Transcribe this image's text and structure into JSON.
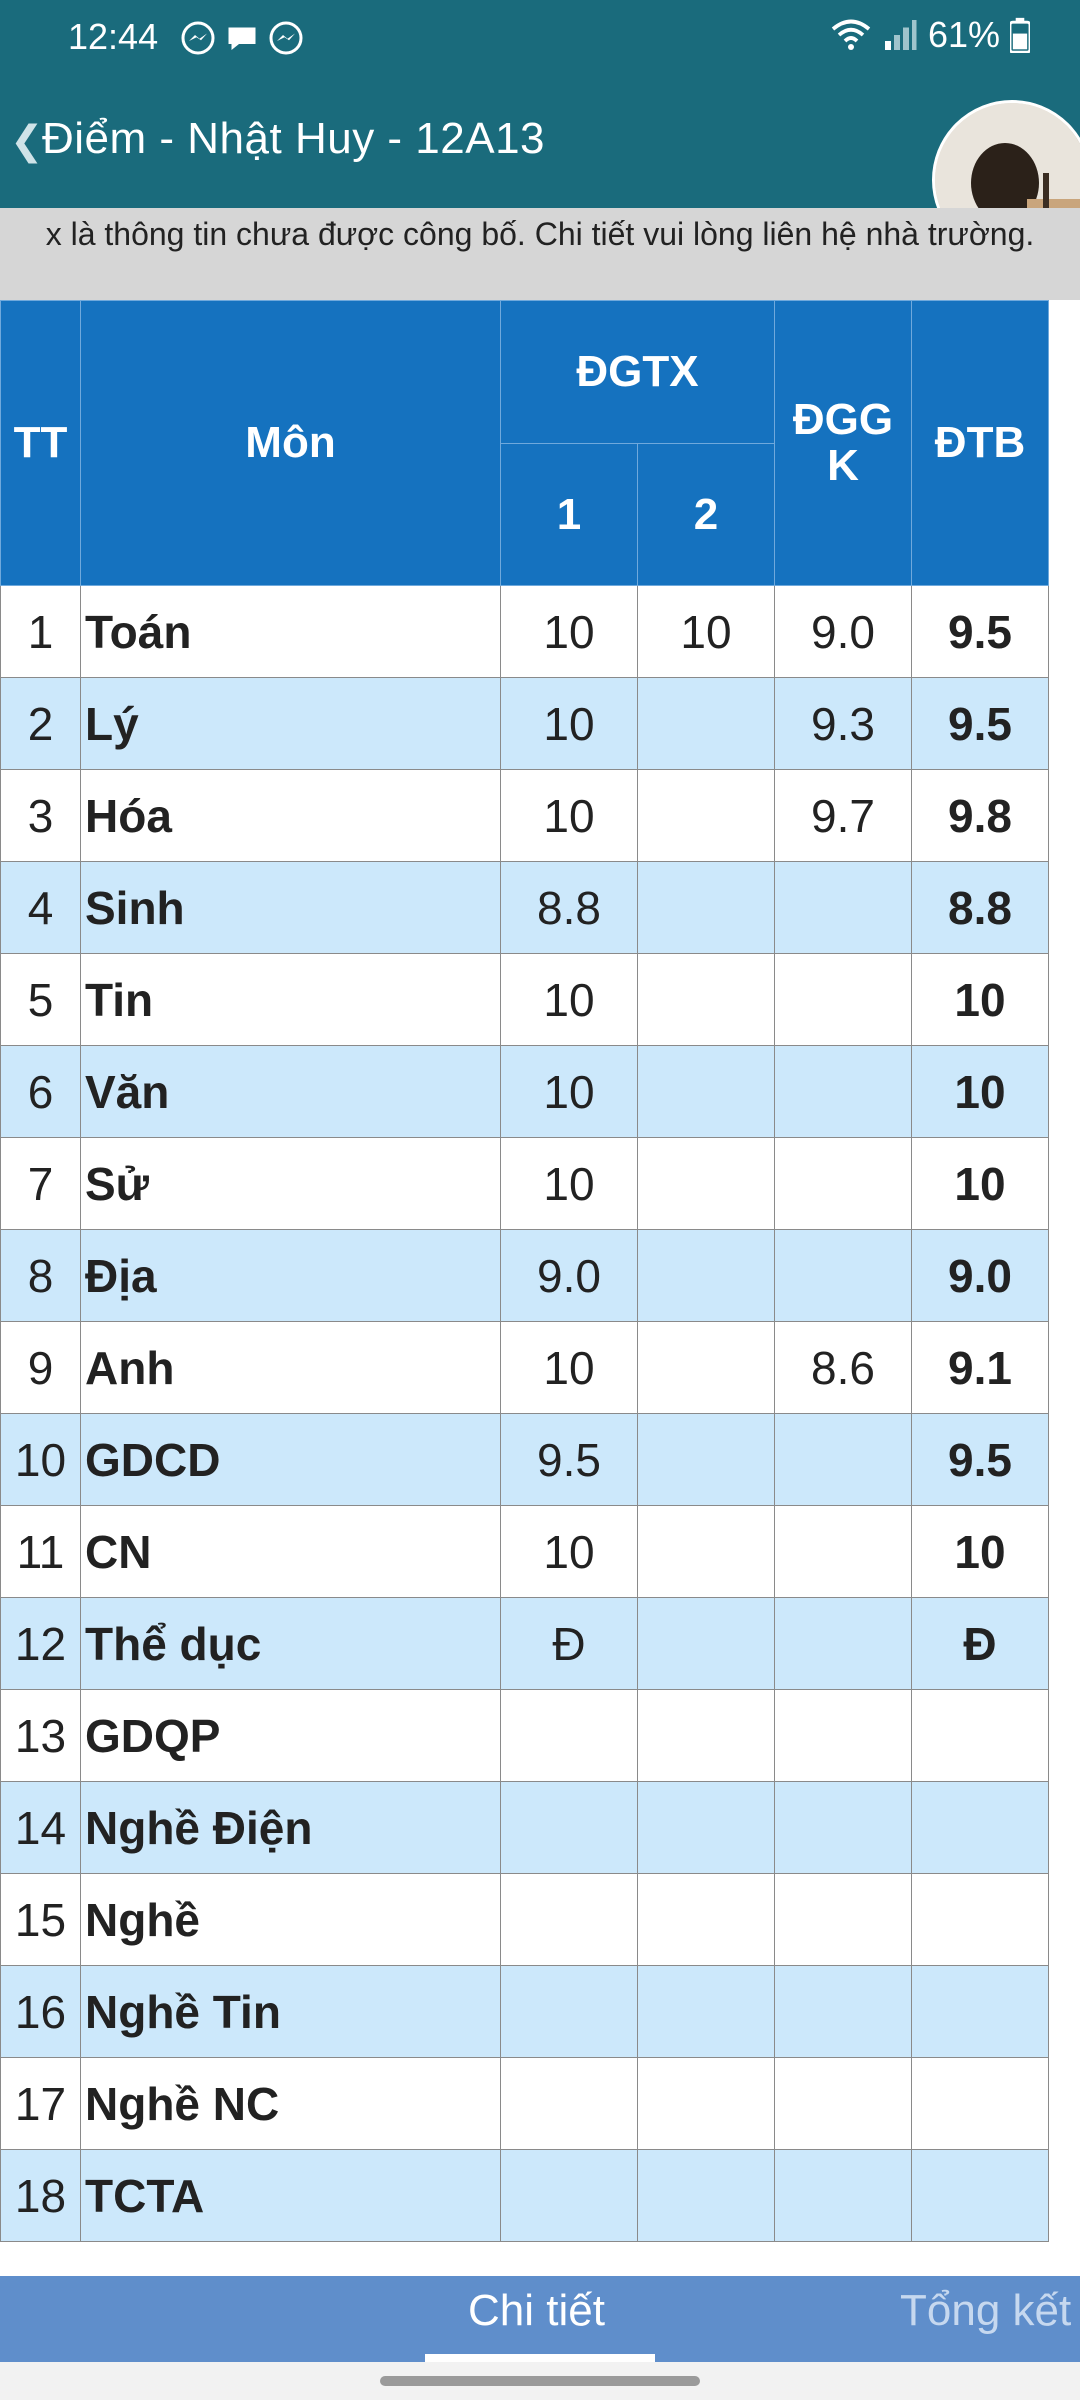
{
  "status": {
    "time": "12:44",
    "battery": "61%",
    "icons": [
      "messenger-icon",
      "chat-bubble-icon",
      "messenger-icon",
      "wifi-icon",
      "signal-icon",
      "battery-icon"
    ]
  },
  "header": {
    "title": "Điểm - Nhật Huy - 12A13"
  },
  "notice": "x là thông tin chưa được công bố. Chi tiết vui lòng liên hệ nhà trường.",
  "table": {
    "headers": {
      "tt": "TT",
      "mon": "Môn",
      "dgtx": "ĐGTX",
      "dgtx1": "1",
      "dgtx2": "2",
      "dggk": "ĐGG K",
      "dtb": "ĐTB"
    },
    "rows": [
      {
        "tt": "1",
        "mon": "Toán",
        "d1": "10",
        "d2": "10",
        "gk": "9.0",
        "tb": "9.5"
      },
      {
        "tt": "2",
        "mon": "Lý",
        "d1": "10",
        "d2": "",
        "gk": "9.3",
        "tb": "9.5"
      },
      {
        "tt": "3",
        "mon": "Hóa",
        "d1": "10",
        "d2": "",
        "gk": "9.7",
        "tb": "9.8"
      },
      {
        "tt": "4",
        "mon": "Sinh",
        "d1": "8.8",
        "d2": "",
        "gk": "",
        "tb": "8.8"
      },
      {
        "tt": "5",
        "mon": "Tin",
        "d1": "10",
        "d2": "",
        "gk": "",
        "tb": "10"
      },
      {
        "tt": "6",
        "mon": "Văn",
        "d1": "10",
        "d2": "",
        "gk": "",
        "tb": "10"
      },
      {
        "tt": "7",
        "mon": "Sử",
        "d1": "10",
        "d2": "",
        "gk": "",
        "tb": "10"
      },
      {
        "tt": "8",
        "mon": "Địa",
        "d1": "9.0",
        "d2": "",
        "gk": "",
        "tb": "9.0"
      },
      {
        "tt": "9",
        "mon": "Anh",
        "d1": "10",
        "d2": "",
        "gk": "8.6",
        "tb": "9.1"
      },
      {
        "tt": "10",
        "mon": "GDCD",
        "d1": "9.5",
        "d2": "",
        "gk": "",
        "tb": "9.5"
      },
      {
        "tt": "11",
        "mon": "CN",
        "d1": "10",
        "d2": "",
        "gk": "",
        "tb": "10"
      },
      {
        "tt": "12",
        "mon": "Thể dục",
        "d1": "Đ",
        "d2": "",
        "gk": "",
        "tb": "Đ"
      },
      {
        "tt": "13",
        "mon": "GDQP",
        "d1": "",
        "d2": "",
        "gk": "",
        "tb": ""
      },
      {
        "tt": "14",
        "mon": "Nghề Điện",
        "d1": "",
        "d2": "",
        "gk": "",
        "tb": ""
      },
      {
        "tt": "15",
        "mon": "Nghề",
        "d1": "",
        "d2": "",
        "gk": "",
        "tb": ""
      },
      {
        "tt": "16",
        "mon": "Nghề Tin",
        "d1": "",
        "d2": "",
        "gk": "",
        "tb": ""
      },
      {
        "tt": "17",
        "mon": "Nghề NC",
        "d1": "",
        "d2": "",
        "gk": "",
        "tb": ""
      },
      {
        "tt": "18",
        "mon": "TCTA",
        "d1": "",
        "d2": "",
        "gk": "",
        "tb": ""
      }
    ]
  },
  "tabs": {
    "detail": "Chi tiết",
    "summary": "Tổng kết"
  },
  "colors": {
    "app_bar": "#1a6b7c",
    "table_header": "#1572bf",
    "row_alt": "#cce8fb",
    "bottom_tabs": "#5f8ecb"
  }
}
